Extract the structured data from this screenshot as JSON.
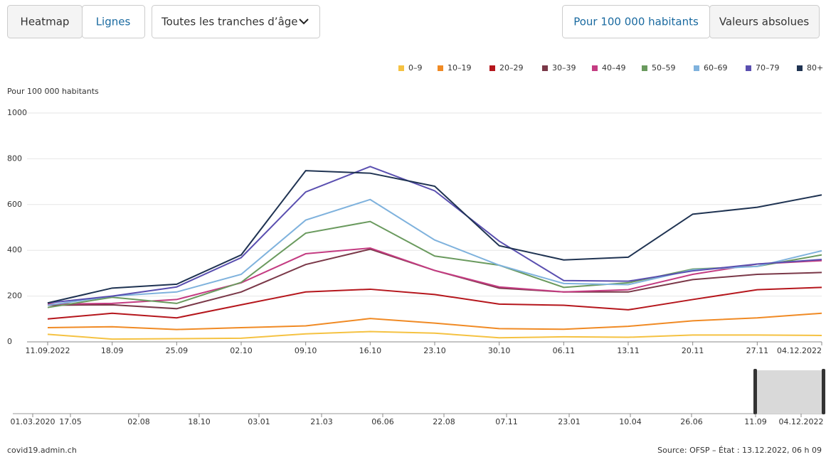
{
  "ui": {
    "view_buttons": [
      "Heatmap",
      "Lignes"
    ],
    "age_select": "Toutes les tranches d’âge",
    "unit_buttons": [
      "Pour 100 000 habitants",
      "Valeurs absolues"
    ],
    "footer_left": "covid19.admin.ch",
    "footer_right": "Source: OFSP – État : 13.12.2022, 06 h 09"
  },
  "chart_data": {
    "type": "line",
    "ylabel": "Pour 100 000 habitants",
    "categories": [
      "11.09.2022",
      "18.09",
      "25.09",
      "02.10",
      "09.10",
      "16.10",
      "23.10",
      "30.10",
      "06.11",
      "13.11",
      "20.11",
      "27.11",
      "04.12.2022"
    ],
    "ylim": [
      0,
      1000
    ],
    "yticks": [
      0,
      200,
      400,
      600,
      800,
      1000
    ],
    "grid": true,
    "legend": "top-right",
    "series": [
      {
        "name": "0–9",
        "color": "#f5c242",
        "values": [
          33,
          12,
          14,
          16,
          35,
          45,
          38,
          18,
          22,
          20,
          30,
          30,
          28
        ]
      },
      {
        "name": "10–19",
        "color": "#f08a24",
        "values": [
          62,
          66,
          54,
          62,
          70,
          102,
          82,
          58,
          55,
          68,
          92,
          105,
          125
        ]
      },
      {
        "name": "20–29",
        "color": "#b5161c",
        "values": [
          100,
          125,
          105,
          162,
          218,
          230,
          207,
          165,
          160,
          140,
          185,
          228,
          238
        ]
      },
      {
        "name": "30–39",
        "color": "#7a3848",
        "values": [
          160,
          162,
          145,
          218,
          338,
          405,
          312,
          235,
          218,
          218,
          272,
          295,
          303
        ]
      },
      {
        "name": "40–49",
        "color": "#c43c82",
        "values": [
          165,
          168,
          185,
          258,
          385,
          410,
          312,
          240,
          218,
          228,
          295,
          340,
          355
        ]
      },
      {
        "name": "50–59",
        "color": "#6a9a5e",
        "values": [
          150,
          195,
          168,
          260,
          475,
          526,
          375,
          335,
          238,
          258,
          318,
          330,
          380
        ]
      },
      {
        "name": "60–69",
        "color": "#7fb2dd",
        "values": [
          160,
          200,
          218,
          295,
          532,
          622,
          445,
          335,
          255,
          250,
          315,
          330,
          398
        ]
      },
      {
        "name": "70–79",
        "color": "#5a4fb0",
        "values": [
          170,
          200,
          240,
          368,
          655,
          766,
          660,
          440,
          268,
          265,
          310,
          340,
          360
        ]
      },
      {
        "name": "80+",
        "color": "#1f3352",
        "values": [
          170,
          235,
          252,
          380,
          748,
          737,
          680,
          420,
          358,
          370,
          558,
          588,
          642
        ]
      }
    ],
    "overview_ticks": [
      "01.03.2020",
      "17.05",
      "02.08",
      "18.10",
      "03.01",
      "21.03",
      "06.06",
      "22.08",
      "07.11",
      "23.01",
      "10.04",
      "26.06",
      "11.09",
      "04.12.2022"
    ]
  }
}
